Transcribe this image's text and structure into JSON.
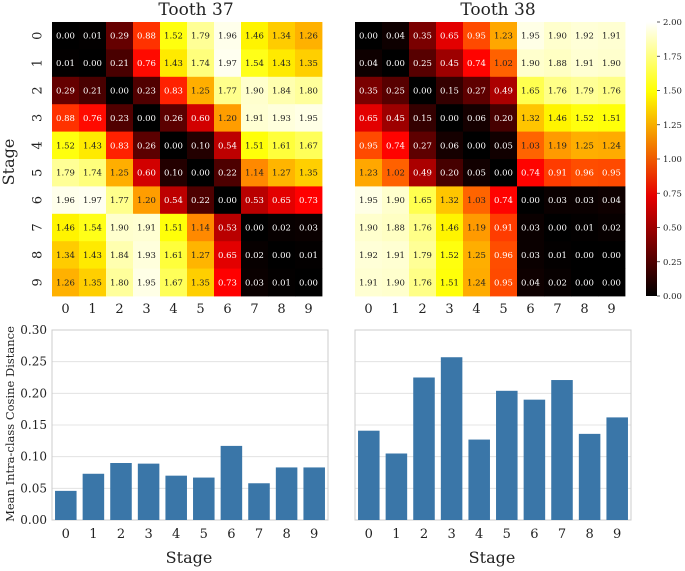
{
  "colors": {
    "bar": "#3a76a8",
    "heat_low": "#000000",
    "heat_high": "#ffffff"
  },
  "chart_data": [
    {
      "type": "heatmap",
      "title": "Tooth 37",
      "xlabel": "",
      "ylabel": "Stage",
      "x_ticks": [
        "0",
        "1",
        "2",
        "3",
        "4",
        "5",
        "6",
        "7",
        "8",
        "9"
      ],
      "y_ticks": [
        "0",
        "1",
        "2",
        "3",
        "4",
        "5",
        "6",
        "7",
        "8",
        "9"
      ],
      "colormap": "hot",
      "vrange": [
        0,
        2
      ],
      "matrix": [
        [
          0.0,
          0.01,
          0.29,
          0.88,
          1.52,
          1.79,
          1.96,
          1.46,
          1.34,
          1.26
        ],
        [
          0.01,
          0.0,
          0.21,
          0.76,
          1.43,
          1.74,
          1.97,
          1.54,
          1.43,
          1.35
        ],
        [
          0.29,
          0.21,
          0.0,
          0.23,
          0.83,
          1.25,
          1.77,
          1.9,
          1.84,
          1.8
        ],
        [
          0.88,
          0.76,
          0.23,
          0.0,
          0.26,
          0.6,
          1.2,
          1.91,
          1.93,
          1.95
        ],
        [
          1.52,
          1.43,
          0.83,
          0.26,
          0.0,
          0.1,
          0.54,
          1.51,
          1.61,
          1.67
        ],
        [
          1.79,
          1.74,
          1.25,
          0.6,
          0.1,
          0.0,
          0.22,
          1.14,
          1.27,
          1.35
        ],
        [
          1.96,
          1.97,
          1.77,
          1.2,
          0.54,
          0.22,
          0.0,
          0.53,
          0.65,
          0.73
        ],
        [
          1.46,
          1.54,
          1.9,
          1.91,
          1.51,
          1.14,
          0.53,
          0.0,
          0.02,
          0.03
        ],
        [
          1.34,
          1.43,
          1.84,
          1.93,
          1.61,
          1.27,
          0.65,
          0.02,
          0.0,
          0.01
        ],
        [
          1.26,
          1.35,
          1.8,
          1.95,
          1.67,
          1.35,
          0.73,
          0.03,
          0.01,
          0.0
        ]
      ]
    },
    {
      "type": "heatmap",
      "title": "Tooth 38",
      "xlabel": "",
      "ylabel": "",
      "x_ticks": [
        "0",
        "1",
        "2",
        "3",
        "4",
        "5",
        "6",
        "7",
        "8",
        "9"
      ],
      "y_ticks": [],
      "colormap": "hot",
      "vrange": [
        0,
        2
      ],
      "colorbar_ticks": [
        "0.00",
        "0.25",
        "0.50",
        "0.75",
        "1.00",
        "1.25",
        "1.50",
        "1.75",
        "2.00"
      ],
      "colorbar_values": [
        0,
        0.25,
        0.5,
        0.75,
        1.0,
        1.25,
        1.5,
        1.75,
        2.0
      ],
      "matrix": [
        [
          0.0,
          0.04,
          0.35,
          0.65,
          0.95,
          1.23,
          1.95,
          1.9,
          1.92,
          1.91
        ],
        [
          0.04,
          0.0,
          0.25,
          0.45,
          0.74,
          1.02,
          1.9,
          1.88,
          1.91,
          1.9
        ],
        [
          0.35,
          0.25,
          0.0,
          0.15,
          0.27,
          0.49,
          1.65,
          1.76,
          1.79,
          1.76
        ],
        [
          0.65,
          0.45,
          0.15,
          0.0,
          0.06,
          0.2,
          1.32,
          1.46,
          1.52,
          1.51
        ],
        [
          0.95,
          0.74,
          0.27,
          0.06,
          0.0,
          0.05,
          1.03,
          1.19,
          1.25,
          1.24
        ],
        [
          1.23,
          1.02,
          0.49,
          0.2,
          0.05,
          0.0,
          0.74,
          0.91,
          0.96,
          0.95
        ],
        [
          1.95,
          1.9,
          1.65,
          1.32,
          1.03,
          0.74,
          0.0,
          0.03,
          0.03,
          0.04
        ],
        [
          1.9,
          1.88,
          1.76,
          1.46,
          1.19,
          0.91,
          0.03,
          0.0,
          0.01,
          0.02
        ],
        [
          1.92,
          1.91,
          1.79,
          1.52,
          1.25,
          0.96,
          0.03,
          0.01,
          0.0,
          0.0
        ],
        [
          1.91,
          1.9,
          1.76,
          1.51,
          1.24,
          0.95,
          0.04,
          0.02,
          0.0,
          0.0
        ]
      ]
    },
    {
      "type": "bar",
      "title": "",
      "xlabel": "Stage",
      "ylabel": "Mean Intra-class Cosine Distance",
      "categories": [
        "0",
        "1",
        "2",
        "3",
        "4",
        "5",
        "6",
        "7",
        "8",
        "9"
      ],
      "values": [
        0.046,
        0.073,
        0.09,
        0.089,
        0.07,
        0.067,
        0.117,
        0.058,
        0.083,
        0.083
      ],
      "ylim": [
        0,
        0.3
      ],
      "y_ticks": [
        0,
        0.05,
        0.1,
        0.15,
        0.2,
        0.25,
        0.3
      ],
      "y_tick_labels": [
        "0.00",
        "0.05",
        "0.10",
        "0.15",
        "0.20",
        "0.25",
        "0.30"
      ],
      "grid": true
    },
    {
      "type": "bar",
      "title": "",
      "xlabel": "Stage",
      "ylabel": "",
      "categories": [
        "0",
        "1",
        "2",
        "3",
        "4",
        "5",
        "6",
        "7",
        "8",
        "9"
      ],
      "values": [
        0.141,
        0.105,
        0.225,
        0.257,
        0.127,
        0.204,
        0.19,
        0.221,
        0.136,
        0.162
      ],
      "ylim": [
        0,
        0.3
      ],
      "y_ticks": [
        0,
        0.05,
        0.1,
        0.15,
        0.2,
        0.25,
        0.3
      ],
      "grid": true
    }
  ]
}
